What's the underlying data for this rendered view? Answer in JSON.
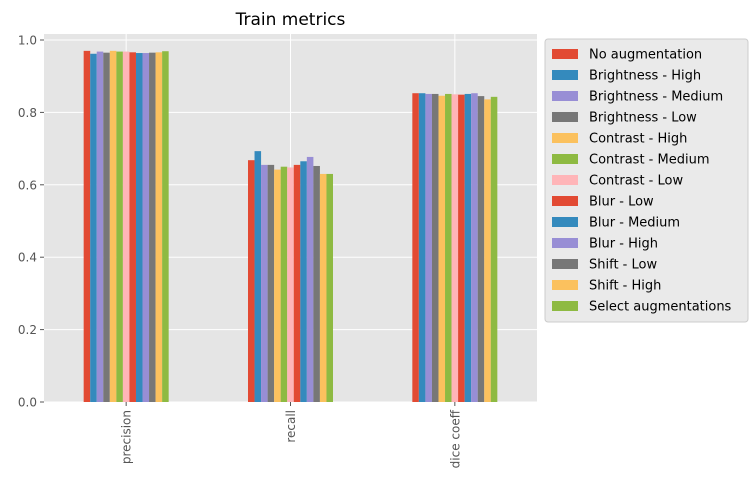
{
  "chart_data": {
    "type": "bar",
    "title": "Train metrics",
    "xlabel": "",
    "ylabel": "",
    "categories": [
      "precision",
      "recall",
      "dice coeff"
    ],
    "ylim": [
      0,
      1.0
    ],
    "yticks": [
      "0.0",
      "0.2",
      "0.4",
      "0.6",
      "0.8",
      "1.0"
    ],
    "grid": true,
    "legend_position": "outside-right",
    "series": [
      {
        "name": "No augmentation",
        "color": "#E24A33",
        "values": [
          0.97,
          0.668,
          0.853
        ]
      },
      {
        "name": "Brightness - High",
        "color": "#348ABD",
        "values": [
          0.962,
          0.693,
          0.853
        ]
      },
      {
        "name": "Brightness - Medium",
        "color": "#988ED5",
        "values": [
          0.968,
          0.655,
          0.851
        ]
      },
      {
        "name": "Brightness - Low",
        "color": "#777777",
        "values": [
          0.965,
          0.655,
          0.851
        ]
      },
      {
        "name": "Contrast - High",
        "color": "#FBC15E",
        "values": [
          0.97,
          0.642,
          0.846
        ]
      },
      {
        "name": "Contrast - Medium",
        "color": "#8EBA42",
        "values": [
          0.968,
          0.65,
          0.851
        ]
      },
      {
        "name": "Contrast - Low",
        "color": "#FFB5B8",
        "values": [
          0.968,
          0.648,
          0.85
        ]
      },
      {
        "name": "Blur - Low",
        "color": "#E24A33",
        "values": [
          0.966,
          0.655,
          0.849
        ]
      },
      {
        "name": "Blur - Medium",
        "color": "#348ABD",
        "values": [
          0.964,
          0.665,
          0.851
        ]
      },
      {
        "name": "Blur - High",
        "color": "#988ED5",
        "values": [
          0.964,
          0.677,
          0.853
        ]
      },
      {
        "name": "Shift - Low",
        "color": "#777777",
        "values": [
          0.965,
          0.652,
          0.845
        ]
      },
      {
        "name": "Shift - High",
        "color": "#FBC15E",
        "values": [
          0.966,
          0.63,
          0.836
        ]
      },
      {
        "name": "Select augmentations",
        "color": "#8EBA42",
        "values": [
          0.969,
          0.63,
          0.843
        ]
      }
    ]
  }
}
